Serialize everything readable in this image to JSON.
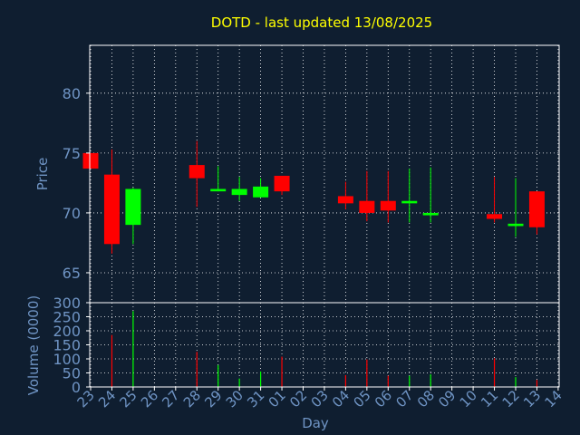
{
  "colors": {
    "background": "#0f1e30",
    "plot_background": "#0f1e30",
    "title": "#ffff00",
    "axis_text": "#6f94c4",
    "frame": "#ffffff",
    "grid": "#ffffff",
    "up": "#00ff00",
    "down": "#ff0000"
  },
  "chart_data": {
    "type": "candlestick",
    "title": "DOTD - last updated 13/08/2025",
    "xlabel": "Day",
    "x_ticks": [
      "23",
      "24",
      "25",
      "26",
      "27",
      "28",
      "29",
      "30",
      "31",
      "01",
      "02",
      "03",
      "04",
      "05",
      "06",
      "07",
      "08",
      "09",
      "10",
      "11",
      "12",
      "13",
      "14"
    ],
    "grid": true,
    "price_panel": {
      "ylabel": "Price",
      "ylim": [
        62.5,
        84
      ],
      "yticks": [
        65,
        70,
        75,
        80
      ],
      "candles": [
        {
          "day": "23",
          "open": 73.7,
          "high": 75.0,
          "low": 73.7,
          "close": 75.0,
          "color": "down"
        },
        {
          "day": "24",
          "open": 73.2,
          "high": 75.3,
          "low": 66.6,
          "close": 67.4,
          "color": "down"
        },
        {
          "day": "25",
          "open": 69.0,
          "high": 72.1,
          "low": 67.4,
          "close": 72.0,
          "color": "up"
        },
        {
          "day": "28",
          "open": 74.0,
          "high": 76.0,
          "low": 70.5,
          "close": 72.9,
          "color": "down"
        },
        {
          "day": "29",
          "open": 71.8,
          "high": 73.9,
          "low": 71.8,
          "close": 72.0,
          "color": "up"
        },
        {
          "day": "30",
          "open": 71.5,
          "high": 73.0,
          "low": 71.0,
          "close": 72.0,
          "color": "up"
        },
        {
          "day": "31",
          "open": 71.3,
          "high": 72.9,
          "low": 71.3,
          "close": 72.2,
          "color": "up"
        },
        {
          "day": "01",
          "open": 73.1,
          "high": 73.1,
          "low": 71.5,
          "close": 71.8,
          "color": "down"
        },
        {
          "day": "04",
          "open": 71.4,
          "high": 72.6,
          "low": 70.3,
          "close": 70.8,
          "color": "down"
        },
        {
          "day": "05",
          "open": 71.0,
          "high": 73.5,
          "low": 69.3,
          "close": 70.0,
          "color": "down"
        },
        {
          "day": "06",
          "open": 71.0,
          "high": 73.5,
          "low": 69.2,
          "close": 70.2,
          "color": "down"
        },
        {
          "day": "07",
          "open": 70.8,
          "high": 73.7,
          "low": 69.2,
          "close": 71.0,
          "color": "up"
        },
        {
          "day": "08",
          "open": 69.8,
          "high": 73.8,
          "low": 69.2,
          "close": 70.0,
          "color": "up"
        },
        {
          "day": "11",
          "open": 69.9,
          "high": 73.0,
          "low": 69.2,
          "close": 69.5,
          "color": "down"
        },
        {
          "day": "12",
          "open": 68.9,
          "high": 72.9,
          "low": 68.0,
          "close": 69.1,
          "color": "up"
        },
        {
          "day": "13",
          "open": 71.8,
          "high": 71.8,
          "low": 68.2,
          "close": 68.8,
          "color": "down"
        }
      ]
    },
    "volume_panel": {
      "ylabel": "Volume (0000)",
      "ylim": [
        0,
        300
      ],
      "yticks": [
        0,
        50,
        100,
        150,
        200,
        250,
        300
      ],
      "bars": [
        {
          "day": "24",
          "value": 185,
          "color": "down"
        },
        {
          "day": "25",
          "value": 270,
          "color": "up"
        },
        {
          "day": "28",
          "value": 125,
          "color": "down"
        },
        {
          "day": "29",
          "value": 78,
          "color": "up"
        },
        {
          "day": "30",
          "value": 30,
          "color": "up"
        },
        {
          "day": "31",
          "value": 55,
          "color": "up"
        },
        {
          "day": "01",
          "value": 108,
          "color": "down"
        },
        {
          "day": "04",
          "value": 42,
          "color": "down"
        },
        {
          "day": "05",
          "value": 98,
          "color": "down"
        },
        {
          "day": "06",
          "value": 40,
          "color": "down"
        },
        {
          "day": "07",
          "value": 40,
          "color": "up"
        },
        {
          "day": "08",
          "value": 45,
          "color": "up"
        },
        {
          "day": "11",
          "value": 102,
          "color": "down"
        },
        {
          "day": "12",
          "value": 35,
          "color": "up"
        },
        {
          "day": "13",
          "value": 25,
          "color": "down"
        }
      ]
    }
  }
}
